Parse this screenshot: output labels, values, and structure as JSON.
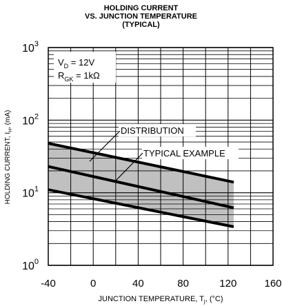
{
  "title_lines": [
    "HOLDING CURRENT",
    "VS. JUNCTION TEMPERATURE",
    "(TYPICAL)"
  ],
  "chart_data": {
    "type": "line",
    "xlabel_main": "JUNCTION TEMPERATURE, T",
    "xlabel_sub": "j",
    "xlabel_unit": ", (°C)",
    "ylabel_main": "HOLDING CURRENT, I",
    "ylabel_sub": "H",
    "ylabel_unit": ", (mA)",
    "xlim": [
      -40,
      160
    ],
    "ylim": [
      1,
      1000
    ],
    "y_scale": "log",
    "x_ticks": [
      "-40",
      "0",
      "40",
      "80",
      "120",
      "160"
    ],
    "y_ticks": [
      {
        "base": "10",
        "exp": "0"
      },
      {
        "base": "10",
        "exp": "1"
      },
      {
        "base": "10",
        "exp": "2"
      },
      {
        "base": "10",
        "exp": "3"
      }
    ],
    "grid": true,
    "series": [
      {
        "x": [
          -40,
          125
        ],
        "y": [
          48,
          14
        ]
      },
      {
        "x": [
          -40,
          125
        ],
        "y": [
          23,
          6.2
        ]
      },
      {
        "x": [
          -40,
          125
        ],
        "y": [
          11,
          3.4
        ]
      }
    ],
    "distribution_band": {
      "x": [
        -40,
        125
      ],
      "upper": [
        48,
        14
      ],
      "lower": [
        11,
        3.4
      ]
    },
    "annotations": {
      "conditions_box": {
        "line1_main": "V",
        "line1_sub": "D",
        "line1_rest": " = 12V",
        "line2_main": "R",
        "line2_sub": "GK",
        "line2_rest": " = 1kΩ"
      },
      "distribution_label": "DISTRIBUTION",
      "typical_label": "TYPICAL EXAMPLE"
    },
    "colors": {
      "band": "#c0c0c0",
      "line": "#000000",
      "grid": "#000000"
    }
  }
}
